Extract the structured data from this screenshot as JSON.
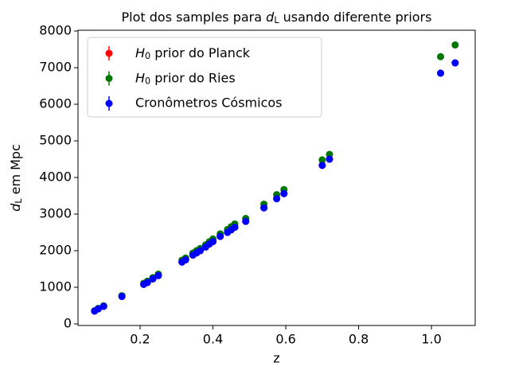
{
  "chart_data": {
    "type": "scatter",
    "title": [
      "Plot dos samples para ",
      "d",
      "L",
      " usando diferente priors"
    ],
    "xlabel": "z",
    "ylabel": [
      "d",
      "L",
      " em Mpc"
    ],
    "x": [
      0.075,
      0.085,
      0.1,
      0.15,
      0.21,
      0.22,
      0.235,
      0.25,
      0.315,
      0.325,
      0.345,
      0.355,
      0.365,
      0.38,
      0.39,
      0.4,
      0.42,
      0.44,
      0.45,
      0.46,
      0.49,
      0.54,
      0.575,
      0.595,
      0.7,
      0.72,
      1.025,
      1.065
    ],
    "series": [
      {
        "name": [
          "H",
          "0",
          " prior do Planck"
        ],
        "color": "#ff0000",
        "values": [
          350,
          410,
          480,
          750,
          1080,
          1130,
          1230,
          1320,
          1690,
          1750,
          1880,
          1940,
          2000,
          2100,
          2180,
          2250,
          2390,
          2500,
          2570,
          2640,
          2800,
          3170,
          3420,
          3560,
          4330,
          4500,
          6850,
          7130
        ]
      },
      {
        "name": [
          "H",
          "0",
          " prior do Ries"
        ],
        "color": "#007700",
        "values": [
          360,
          425,
          495,
          770,
          1110,
          1165,
          1265,
          1360,
          1740,
          1800,
          1935,
          2000,
          2060,
          2160,
          2245,
          2320,
          2460,
          2580,
          2655,
          2730,
          2880,
          3270,
          3530,
          3670,
          4480,
          4630,
          7300,
          7620
        ]
      },
      {
        "name": "Cronômetros Cósmicos",
        "color": "#0000ff",
        "values": [
          350,
          410,
          480,
          750,
          1080,
          1130,
          1230,
          1320,
          1690,
          1750,
          1880,
          1940,
          2000,
          2100,
          2180,
          2250,
          2390,
          2500,
          2570,
          2640,
          2800,
          3170,
          3420,
          3560,
          4330,
          4500,
          6850,
          7130
        ]
      }
    ],
    "xlim": [
      0.0295,
      1.12
    ],
    "xticks": [
      0.2,
      0.4,
      0.6,
      0.8,
      {
        "value": 1.0,
        "label": "1.0"
      }
    ],
    "ylim": [
      -43,
      8022
    ],
    "yticks": [
      0,
      1000,
      2000,
      3000,
      4000,
      5000,
      6000,
      7000,
      8000
    ],
    "legend": "upper left"
  }
}
